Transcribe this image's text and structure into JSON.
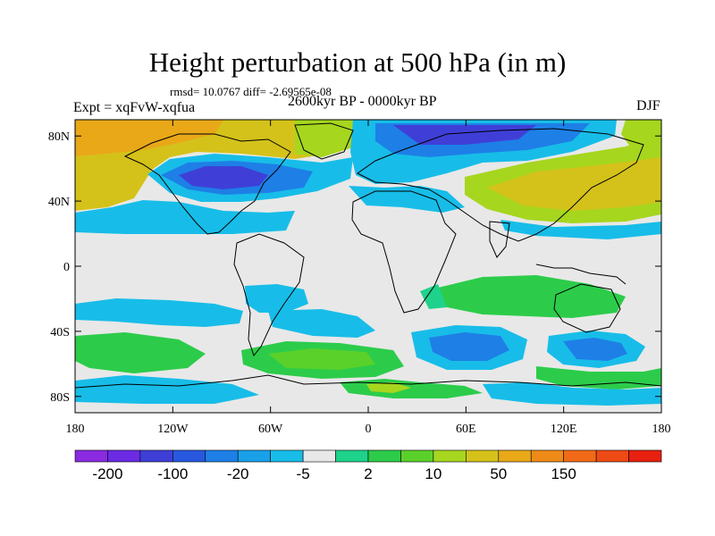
{
  "title": "Height perturbation at 500 hPa (in m)",
  "stats_text": "rmsd= 10.0767 diff= -2.69565e-08",
  "period_text": "2600kyr BP - 0000kyr BP",
  "experiment_text": "Expt = xqFvW-xqfua",
  "season_text": "DJF",
  "map": {
    "lat_ticks": [
      "80N",
      "40N",
      "0",
      "40S",
      "80S"
    ],
    "lat_values": [
      80,
      40,
      0,
      -40,
      -80
    ],
    "lon_ticks": [
      "180",
      "120W",
      "60W",
      "0",
      "60E",
      "120E",
      "180"
    ],
    "lon_values": [
      -180,
      -120,
      -60,
      0,
      60,
      120,
      180
    ],
    "lat_range": [
      -90,
      90
    ],
    "lon_range": [
      -180,
      180
    ],
    "projection": "cylindrical-equidistant"
  },
  "colorbar": {
    "labels": [
      "-200",
      "-100",
      "-20",
      "-5",
      "2",
      "10",
      "50",
      "150"
    ],
    "colors": [
      "#8a2be2",
      "#6a2be2",
      "#3f3fd8",
      "#2858e0",
      "#1e7fe6",
      "#1aa0e8",
      "#17bde8",
      "#e8e8e8",
      "#1ed28c",
      "#2ccc4a",
      "#5ad12a",
      "#a6d61e",
      "#d4c21a",
      "#e8a818",
      "#ee8a18",
      "#f06a18",
      "#ee4a16",
      "#e82010"
    ]
  }
}
